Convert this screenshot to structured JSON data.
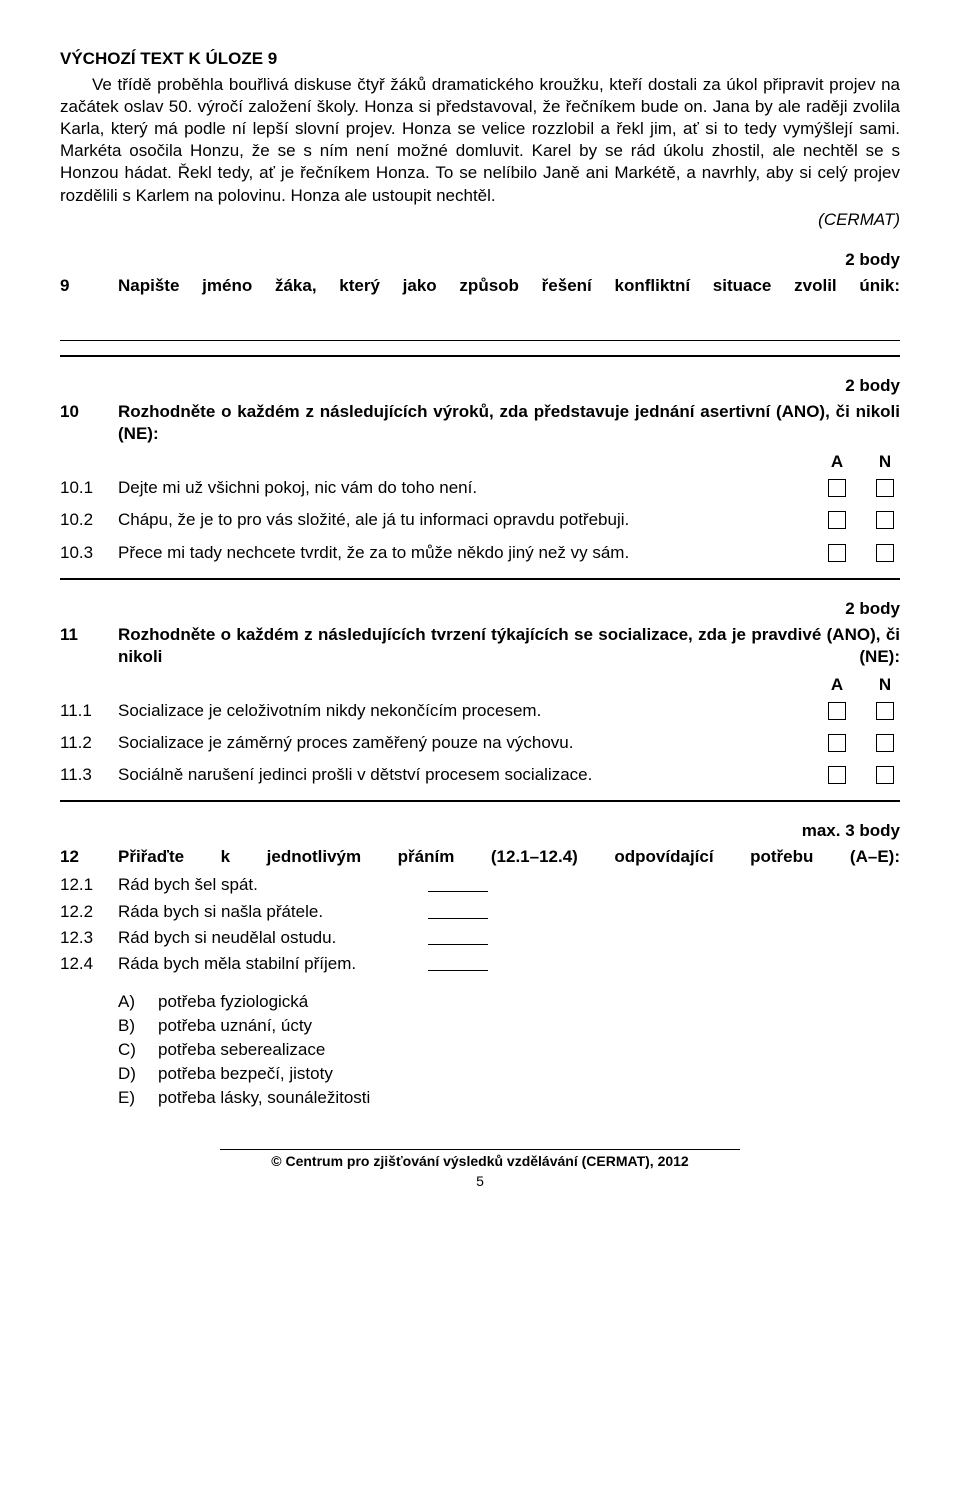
{
  "header": "VÝCHOZÍ TEXT K ÚLOZE 9",
  "passage": "Ve třídě proběhla bouřlivá diskuse čtyř žáků dramatického kroužku, kteří dostali za úkol připravit projev na začátek oslav 50. výročí založení školy. Honza si představoval, že řečníkem bude on. Jana by ale raději zvolila Karla, který má podle ní lepší slovní projev. Honza se velice rozzlobil a řekl jim, ať si to tedy vymýšlejí sami. Markéta osočila Honzu, že se s ním není možné domluvit. Karel by se rád úkolu zhostil, ale nechtěl se s Honzou hádat. Řekl tedy, ať je řečníkem Honza. To se nelíbilo Janě ani Markétě, a navrhly, aby si celý projev rozdělili s Karlem na polovinu. Honza ale ustoupit nechtěl.",
  "source": "(CERMAT)",
  "points2": "2 body",
  "pointsMax3": "max. 3 body",
  "q9": {
    "num": "9",
    "text": "Napište jméno žáka, který jako způsob řešení konfliktní situace zvolil únik:"
  },
  "q10": {
    "num": "10",
    "text": "Rozhodněte o každém z následujících výroků, zda představuje jednání asertivní (ANO), či nikoli (NE):",
    "colA": "A",
    "colN": "N",
    "items": [
      {
        "num": "10.1",
        "text": "Dejte mi už všichni pokoj, nic vám do toho není."
      },
      {
        "num": "10.2",
        "text": "Chápu, že je to pro vás složité, ale já tu informaci opravdu potřebuji."
      },
      {
        "num": "10.3",
        "text": "Přece mi tady nechcete tvrdit, že za to může někdo jiný než vy sám."
      }
    ]
  },
  "q11": {
    "num": "11",
    "text": "Rozhodněte o každém z následujících tvrzení týkajících se socializace, zda je pravdivé (ANO), či nikoli (NE):",
    "colA": "A",
    "colN": "N",
    "items": [
      {
        "num": "11.1",
        "text": "Socializace je celoživotním nikdy nekončícím procesem."
      },
      {
        "num": "11.2",
        "text": "Socializace je záměrný proces zaměřený pouze na výchovu."
      },
      {
        "num": "11.3",
        "text": "Sociálně narušení jedinci prošli v dětství procesem socializace."
      }
    ]
  },
  "q12": {
    "num": "12",
    "text": "Přiřaďte k jednotlivým přáním (12.1–12.4) odpovídající potřebu (A–E):",
    "items": [
      {
        "num": "12.1",
        "text": "Rád bych šel spát."
      },
      {
        "num": "12.2",
        "text": "Ráda bych si našla přátele."
      },
      {
        "num": "12.3",
        "text": "Rád bych si neudělal ostudu."
      },
      {
        "num": "12.4",
        "text": "Ráda bych měla stabilní příjem."
      }
    ],
    "options": [
      {
        "letter": "A)",
        "text": "potřeba fyziologická"
      },
      {
        "letter": "B)",
        "text": "potřeba uznání, úcty"
      },
      {
        "letter": "C)",
        "text": "potřeba seberealizace"
      },
      {
        "letter": "D)",
        "text": "potřeba bezpečí, jistoty"
      },
      {
        "letter": "E)",
        "text": "potřeba lásky, sounáležitosti"
      }
    ]
  },
  "footer": {
    "copyright": "© Centrum pro zjišťování výsledků vzdělávání (CERMAT), 2012",
    "page": "5"
  }
}
